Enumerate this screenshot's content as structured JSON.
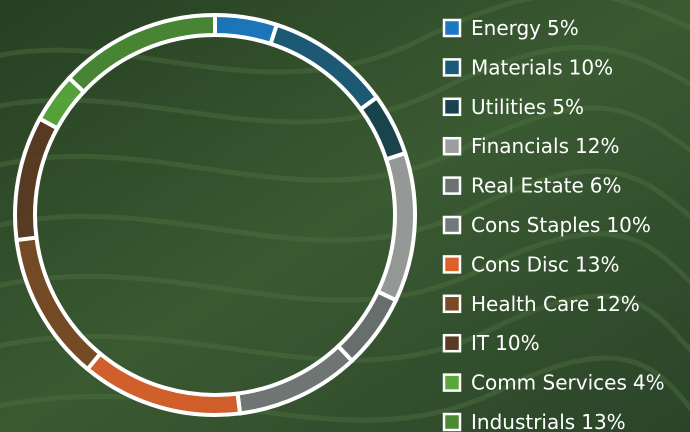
{
  "chart_data": {
    "type": "donut",
    "categories": [
      "Energy",
      "Materials",
      "Utilities",
      "Financials",
      "Real Estate",
      "Cons Staples",
      "Cons Disc",
      "Health Care",
      "IT",
      "Comm Services",
      "Industrials"
    ],
    "values": [
      5,
      10,
      5,
      12,
      6,
      10,
      13,
      12,
      10,
      4,
      13
    ],
    "value_labels": [
      "5%",
      "10%",
      "5%",
      "12%",
      "6%",
      "10%",
      "13%",
      "12%",
      "10%",
      "4%",
      "13%"
    ],
    "colors": [
      "#1a78c4",
      "#1b5a78",
      "#17424e",
      "#9c9d9e",
      "#6b7272",
      "#737878",
      "#dd5f2a",
      "#7a4a24",
      "#5a3a22",
      "#5aa83c",
      "#4a8a34"
    ]
  }
}
